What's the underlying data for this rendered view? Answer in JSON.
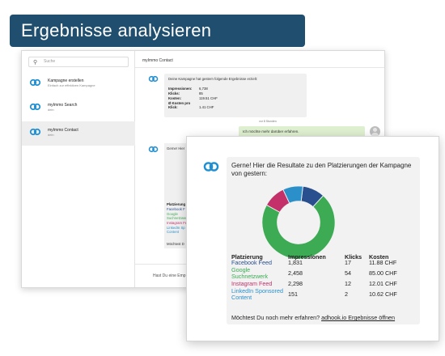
{
  "banner": {
    "title": "Ergebnisse analysieren"
  },
  "colors": {
    "banner": "#1f4e6e",
    "brand": "#1e8fd2",
    "facebook": "#2a4f8f",
    "google": "#3cab54",
    "instagram": "#c4306a",
    "linkedin": "#2b8fc9",
    "user_bubble": "#dff0d0"
  },
  "sidebar": {
    "search_placeholder": "Suche",
    "conversations": [
      {
        "title": "Kampagne erstellen",
        "subtitle": "Einfach zur effektiven Kampagne",
        "icon": "link-logo-icon"
      },
      {
        "title": "myImmo Search",
        "subtitle": "dein",
        "icon": "link-logo-icon"
      },
      {
        "title": "myImmo Contact",
        "subtitle": "dein",
        "icon": "link-logo-icon"
      }
    ]
  },
  "chat": {
    "header": "myImmo Contact",
    "msg1": {
      "intro": "Deine Kampagne hat gestern folgende Ergebnisse erzielt:",
      "rows": [
        {
          "label": "Impressionen:",
          "value": "6,738"
        },
        {
          "label": "Klicks:",
          "value": "85"
        },
        {
          "label": "Kosten:",
          "value": "119.51 CHF"
        },
        {
          "label": "Ø Kosten pro Klick:",
          "value": "1.41 CHF"
        }
      ]
    },
    "ts1": "vor 8 Stunden",
    "user_msg": "Ich möchte mehr darüber erfahren.",
    "ts2": "vor einer Minute",
    "msg2": {
      "text": "Gerne! Hier",
      "head": "Platzierung",
      "items": [
        "Facebook F",
        "Google",
        "Suchnetzwerk",
        "Instagram Feed",
        "LinkedIn Sp",
        "Content"
      ],
      "more": "Möchtest D"
    },
    "input_placeholder": "Hast Du eine Emp"
  },
  "front": {
    "intro": "Gerne! Hier die Resultate zu den Platzierungen der Kampagne von gestern:",
    "headers": {
      "placement": "Platzierung",
      "impressions": "Impressionen",
      "clicks": "Klicks",
      "cost": "Kosten"
    },
    "rows": [
      {
        "placement": "Facebook Feed",
        "impressions": "1,831",
        "clicks": "17",
        "cost": "11.88 CHF"
      },
      {
        "placement": "Google Suchnetzwerk",
        "impressions": "2,458",
        "clicks": "54",
        "cost": "85.00 CHF"
      },
      {
        "placement": "Instagram Feed",
        "impressions": "2,298",
        "clicks": "12",
        "cost": "12.01 CHF"
      },
      {
        "placement": "LinkedIn Sponsored Content",
        "impressions": "151",
        "clicks": "2",
        "cost": "10.62 CHF"
      }
    ],
    "footer_text": "Möchtest Du noch mehr erfahren?",
    "footer_link": "adhook.io Ergebnisse öffnen"
  },
  "chart_data": {
    "type": "pie",
    "categories": [
      "Facebook Feed",
      "Google Suchnetzwerk",
      "Instagram Feed",
      "LinkedIn Sponsored Content"
    ],
    "values": [
      11.88,
      85.0,
      12.01,
      10.62
    ],
    "colors": [
      "#2a4f8f",
      "#3cab54",
      "#c4306a",
      "#2b8fc9"
    ],
    "style": "donut"
  }
}
